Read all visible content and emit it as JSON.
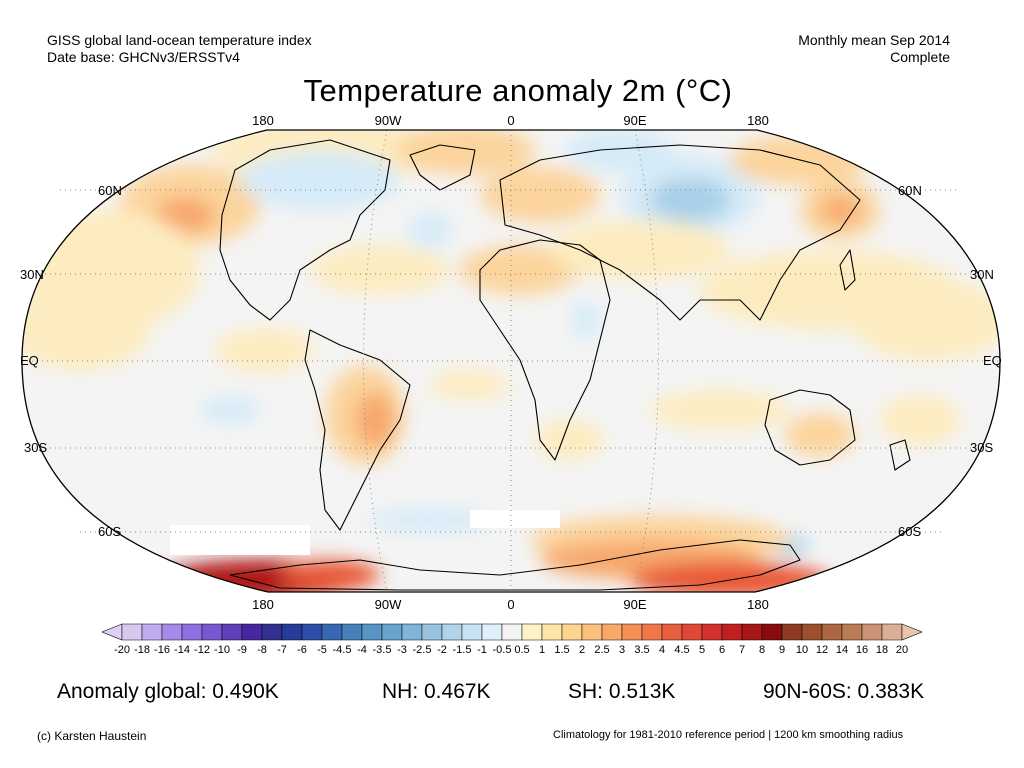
{
  "header": {
    "line1_left": "GISS global land-ocean temperature index",
    "line2_left": "Date base: GHCNv3/ERSSTv4",
    "line1_right": "Monthly mean Sep 2014",
    "line2_right": "Complete"
  },
  "title": "Temperature anomaly 2m (°C)",
  "longitude_labels": [
    "180",
    "90W",
    "0",
    "90E",
    "180"
  ],
  "latitude_labels": [
    "60N",
    "30N",
    "EQ",
    "30S",
    "60S"
  ],
  "colorbar": {
    "tick_labels": [
      "-20",
      "-18",
      "-16",
      "-14",
      "-12",
      "-10",
      "-9",
      "-8",
      "-7",
      "-6",
      "-5",
      "-4.5",
      "-4",
      "-3.5",
      "-3",
      "-2.5",
      "-2",
      "-1.5",
      "-1",
      "-0.5",
      "0.5",
      "1",
      "1.5",
      "2",
      "2.5",
      "3",
      "3.5",
      "4",
      "4.5",
      "5",
      "6",
      "7",
      "8",
      "9",
      "10",
      "12",
      "14",
      "16",
      "18",
      "20"
    ],
    "colors": [
      "#d8c8f0",
      "#c0aaf0",
      "#a888e8",
      "#9070e0",
      "#7858d0",
      "#6040b8",
      "#4828a0",
      "#303090",
      "#283c98",
      "#2c50a8",
      "#3868b4",
      "#4880bc",
      "#5894c4",
      "#68a4cc",
      "#80b4d8",
      "#98c4e0",
      "#b0d4ea",
      "#c8e4f4",
      "#e0f0fa",
      "#f4f4f4",
      "#fdf2c8",
      "#fde4a8",
      "#fcd490",
      "#fbc07c",
      "#f8a868",
      "#f49058",
      "#f07848",
      "#e86040",
      "#e04838",
      "#d43030",
      "#c02020",
      "#a81818",
      "#880c0c",
      "#8c3a20",
      "#9c5030",
      "#ac6644",
      "#bc7c58",
      "#cc9274",
      "#dcae94"
    ],
    "under_color": "#ddd0f4",
    "over_color": "#ecc4ac"
  },
  "stats": {
    "global": "Anomaly global: 0.490K",
    "nh": "NH: 0.467K",
    "sh": "SH: 0.513K",
    "polar": "90N-60S: 0.383K"
  },
  "footer": {
    "credit": "(c) Karsten Haustein",
    "note": "Climatology for 1981-2010 reference period | 1200 km smoothing radius"
  },
  "map_colors": {
    "ocean_neutral": "#f4f4f4",
    "warm_light": "#fdecc0",
    "warm_med": "#fcd49c",
    "warm_strong": "#f7a86c",
    "hot": "#e85838",
    "very_hot": "#b01818",
    "cool_light": "#d6ebf8",
    "cool_med": "#a8d0e8",
    "no_data": "#ffffff"
  }
}
